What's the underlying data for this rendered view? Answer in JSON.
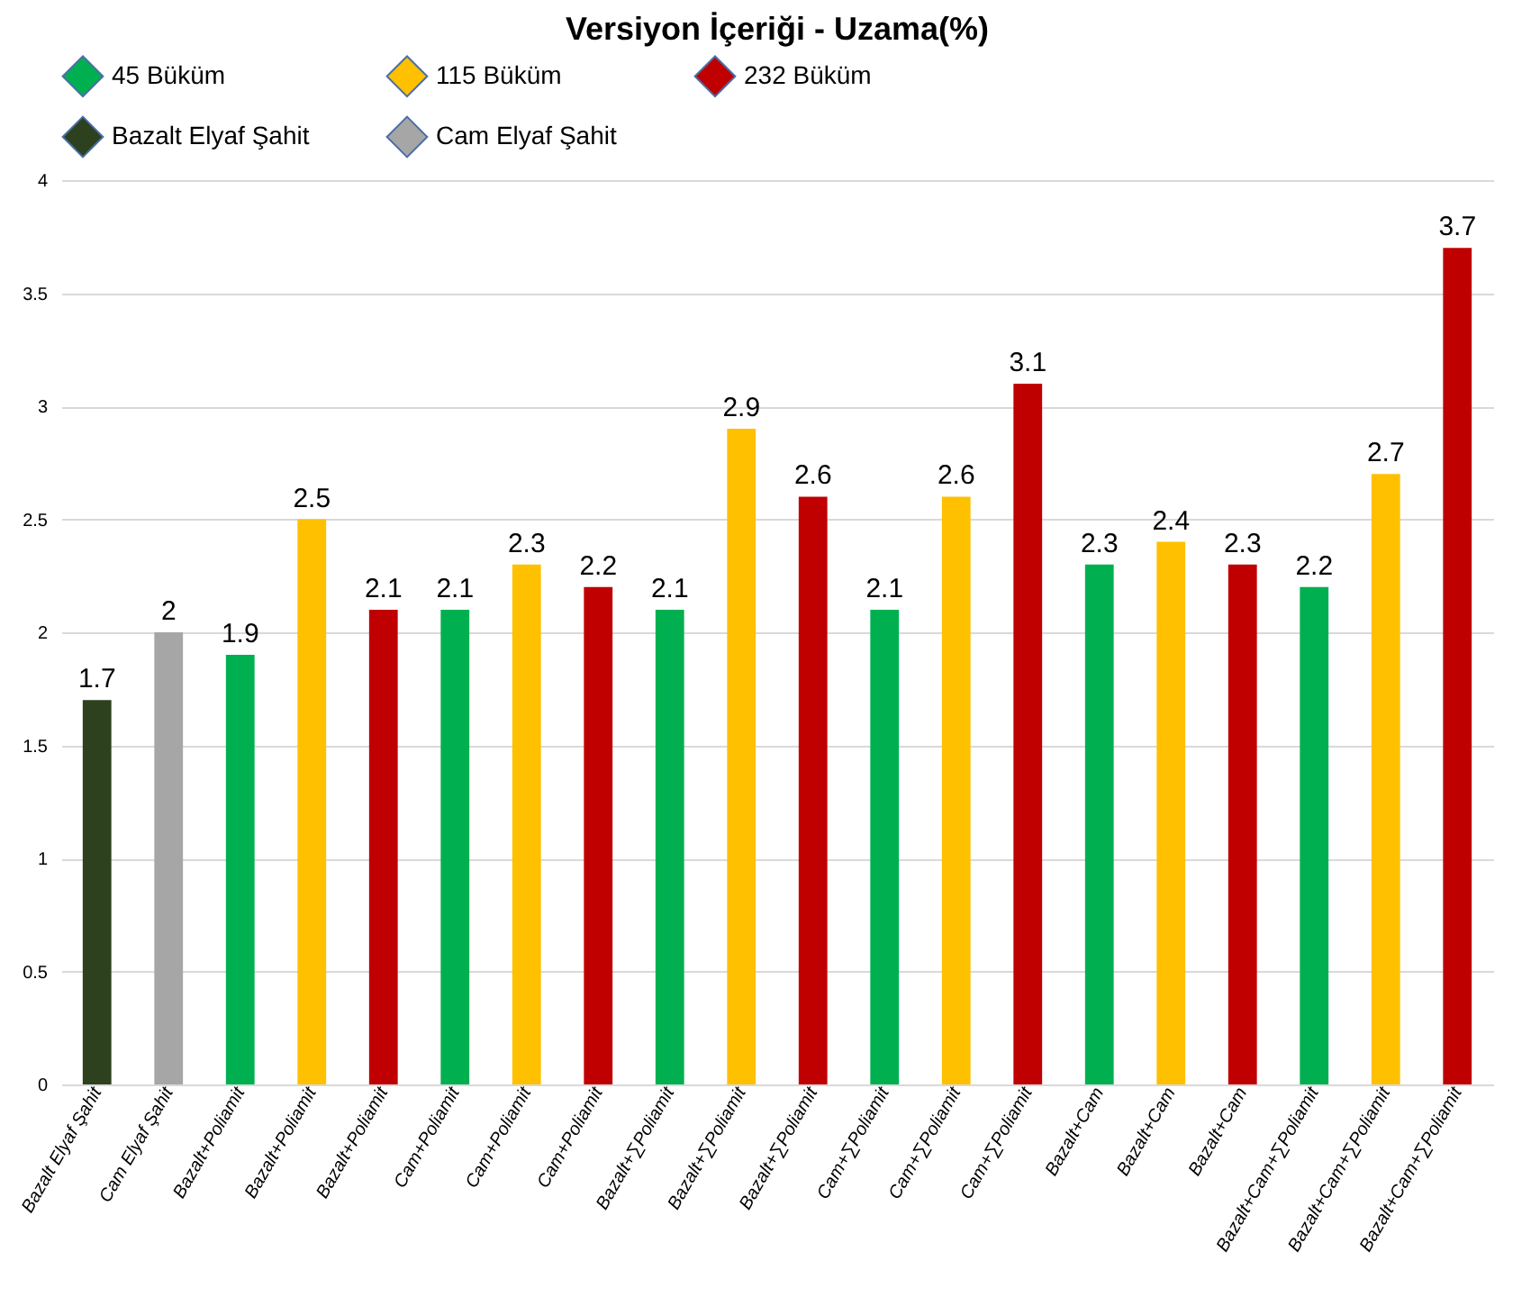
{
  "chart_data": {
    "type": "bar",
    "title": "Versiyon İçeriği - Uzama(%)",
    "categories": [
      "Bazalt Elyaf Şahit",
      "Cam Elyaf Şahit",
      "Bazalt+Poliamit",
      "Bazalt+Poliamit",
      "Bazalt+Poliamit",
      "Cam+Poliamit",
      "Cam+Poliamit",
      "Cam+Poliamit",
      "Bazalt+∑Poliamit",
      "Bazalt+∑Poliamit",
      "Bazalt+∑Poliamit",
      "Cam+∑Poliamit",
      "Cam+∑Poliamit",
      "Cam+∑Poliamit",
      "Bazalt+Cam",
      "Bazalt+Cam",
      "Bazalt+Cam",
      "Bazalt+Cam+∑Poliamit",
      "Bazalt+Cam+∑Poliamit",
      "Bazalt+Cam+∑Poliamit"
    ],
    "series": [
      {
        "name": "45 Büküm",
        "color": "#00b050",
        "values": [
          null,
          null,
          1.9,
          null,
          null,
          2.1,
          null,
          null,
          2.1,
          null,
          null,
          2.1,
          null,
          null,
          2.3,
          null,
          null,
          2.2,
          null,
          null
        ]
      },
      {
        "name": "115 Büküm",
        "color": "#ffc000",
        "values": [
          null,
          null,
          null,
          2.5,
          null,
          null,
          2.3,
          null,
          null,
          2.9,
          null,
          null,
          2.6,
          null,
          null,
          2.4,
          null,
          null,
          2.7,
          null
        ]
      },
      {
        "name": "232 Büküm",
        "color": "#c00000",
        "values": [
          null,
          null,
          null,
          null,
          2.1,
          null,
          null,
          2.2,
          null,
          null,
          2.6,
          null,
          null,
          3.1,
          null,
          null,
          2.3,
          null,
          null,
          3.7
        ]
      },
      {
        "name": "Bazalt Elyaf Şahit",
        "color": "#2d411f",
        "values": [
          1.7,
          null,
          null,
          null,
          null,
          null,
          null,
          null,
          null,
          null,
          null,
          null,
          null,
          null,
          null,
          null,
          null,
          null,
          null,
          null
        ]
      },
      {
        "name": "Cam Elyaf Şahit",
        "color": "#a6a6a6",
        "values": [
          null,
          2,
          null,
          null,
          null,
          null,
          null,
          null,
          null,
          null,
          null,
          null,
          null,
          null,
          null,
          null,
          null,
          null,
          null,
          null
        ]
      }
    ],
    "ylim": [
      0,
      4
    ],
    "yticks": [
      0,
      0.5,
      1,
      1.5,
      2,
      2.5,
      3,
      3.5,
      4
    ],
    "grid": "y",
    "legend": "top",
    "data_labels": true
  }
}
